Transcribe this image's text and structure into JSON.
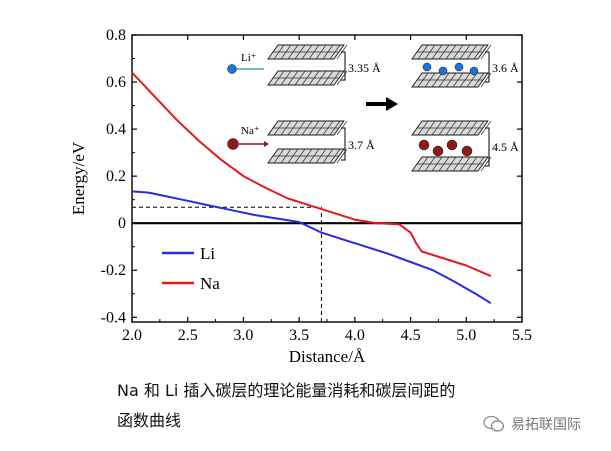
{
  "chart_data": {
    "type": "line",
    "xlabel": "Distance/Å",
    "ylabel": "Energy/eV",
    "xlim": [
      2.0,
      5.5
    ],
    "ylim": [
      -0.42,
      0.8
    ],
    "xticks": [
      2.0,
      2.5,
      3.0,
      3.5,
      4.0,
      4.5,
      5.0,
      5.5
    ],
    "yticks": [
      -0.4,
      -0.2,
      0,
      0.2,
      0.4,
      0.6,
      0.8
    ],
    "xtick_labels": [
      "2.0",
      "2.5",
      "3.0",
      "3.5",
      "4.0",
      "4.5",
      "5.0",
      "5.5"
    ],
    "ytick_labels": [
      "-0.4",
      "-0.2",
      "0",
      "0.2",
      "0.4",
      "0.6",
      "0.8"
    ],
    "zero_line": 0,
    "series": [
      {
        "name": "Li",
        "color": "#2a2ae0",
        "x": [
          2.0,
          2.15,
          2.3,
          2.5,
          2.7,
          2.9,
          3.1,
          3.3,
          3.5,
          3.7,
          3.9,
          4.1,
          4.3,
          4.5,
          4.7,
          4.9,
          5.1,
          5.22
        ],
        "y": [
          0.135,
          0.13,
          0.115,
          0.095,
          0.075,
          0.055,
          0.035,
          0.02,
          0.005,
          -0.04,
          -0.07,
          -0.1,
          -0.13,
          -0.165,
          -0.2,
          -0.25,
          -0.305,
          -0.34
        ]
      },
      {
        "name": "Na",
        "color": "#e8171c",
        "x": [
          2.0,
          2.2,
          2.4,
          2.6,
          2.8,
          3.0,
          3.2,
          3.4,
          3.6,
          3.8,
          4.0,
          4.2,
          4.4,
          4.5,
          4.55,
          4.6,
          4.7,
          4.8,
          5.0,
          5.22
        ],
        "y": [
          0.64,
          0.54,
          0.44,
          0.35,
          0.27,
          0.2,
          0.15,
          0.105,
          0.075,
          0.045,
          0.015,
          0.0,
          -0.005,
          -0.04,
          -0.085,
          -0.12,
          -0.135,
          -0.15,
          -0.18,
          -0.225
        ]
      }
    ],
    "annotations": {
      "h_dashed": {
        "x1": 2.0,
        "x2": 3.7,
        "y": 0.068
      },
      "v_dashed": {
        "x": 3.7,
        "y1": -0.42,
        "y2": 0.068
      }
    },
    "inset": {
      "li_ion": "Li⁺",
      "na_ion": "Na⁺",
      "li_before": "3.35 Å",
      "li_after": "3.6 Å",
      "na_before": "3.7 Å",
      "na_after": "4.5 Å"
    }
  },
  "caption": {
    "line1": "Na 和 Li 插入碳层的理论能量消耗和碳层间距的",
    "line2": "函数曲线"
  },
  "watermark": {
    "text": "易拓联国际"
  }
}
